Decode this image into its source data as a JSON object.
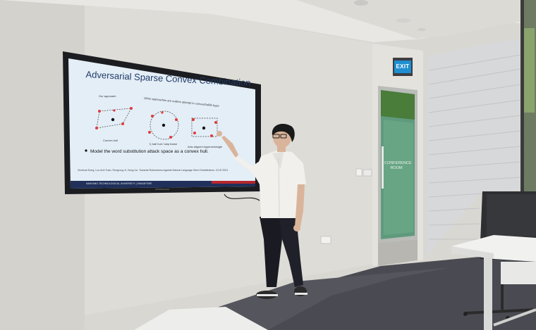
{
  "slide": {
    "title": "Adversarial Sparse Convex Combination",
    "label_our_approach": "Our approach",
    "label_other_approaches": "Other approaches are outliers attempt to convex/ball/le hype",
    "label_convex_hull": "Convex hull",
    "label_l2_ball": "ℓ₂ ball hull / skip frame",
    "label_hyperrectangle": "Axis aligned hyperrectangle",
    "bullet": "Model the word substitution attack space as a convex hull.",
    "citation": "Xinshuai Dong, Luu Anh Tuan, Rongrong Ji, Hong Liu. Towards Robustness Against Natural Language Word Substitutions. ICLR 2021.",
    "footer_org": "NANYANG TECHNOLOGICAL UNIVERSITY | SINGAPORE"
  },
  "signs": {
    "exit": "EXIT",
    "door_sign": "CONFERENCE ROOM"
  },
  "colors": {
    "screen_bg": "#e4eef7",
    "title_blue": "#1f3a66",
    "dot_red": "#e23a3a",
    "exit_green": "#1f8fd0",
    "carpet": "#4a4b52"
  }
}
